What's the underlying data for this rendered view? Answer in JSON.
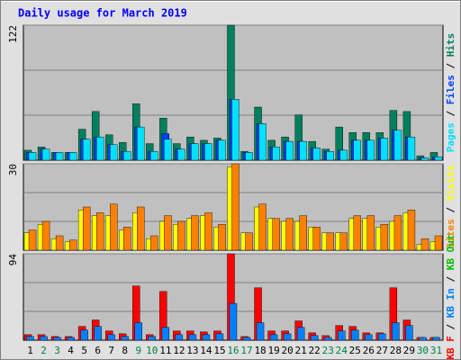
{
  "chart_data": [
    {
      "type": "bar",
      "title": "Daily usage for March 2019",
      "ylim": [
        0,
        122
      ],
      "yticks": [
        122
      ],
      "grid_divisions": 3,
      "legend_separator": " / ",
      "legend_reversed": true,
      "series": [
        {
          "name": "Hits",
          "color": "#00805c",
          "values": [
            9,
            12,
            7,
            7,
            28,
            44,
            23,
            16,
            51,
            15,
            38,
            15,
            21,
            18,
            20,
            122,
            8,
            48,
            18,
            21,
            41,
            17,
            10,
            30,
            25,
            25,
            25,
            45,
            44,
            4,
            7
          ]
        },
        {
          "name": "Files",
          "color": "#0040ff",
          "values": [
            7,
            10,
            7,
            7,
            19,
            21,
            14,
            8,
            30,
            8,
            24,
            10,
            15,
            15,
            18,
            55,
            7,
            33,
            12,
            17,
            17,
            11,
            8,
            9,
            18,
            18,
            20,
            27,
            21,
            2,
            3
          ]
        },
        {
          "name": "Pages",
          "color": "#00e0ff",
          "values": [
            7,
            10,
            7,
            7,
            19,
            21,
            14,
            8,
            30,
            8,
            19,
            10,
            15,
            15,
            18,
            55,
            7,
            33,
            12,
            17,
            17,
            11,
            8,
            9,
            18,
            18,
            20,
            27,
            21,
            2,
            3
          ]
        }
      ]
    },
    {
      "type": "bar",
      "ylim": [
        0,
        30
      ],
      "yticks": [
        30
      ],
      "grid_divisions": 3,
      "legend_separator": " / ",
      "legend_reversed": true,
      "series": [
        {
          "name": "Visits",
          "color": "#ffff00",
          "values": [
            6,
            9,
            4,
            3,
            14,
            12,
            12,
            7,
            13,
            4,
            10,
            9,
            11,
            12,
            8,
            29,
            6,
            15,
            11,
            10,
            10,
            8,
            6,
            6,
            11,
            11,
            8,
            10,
            13,
            2,
            3
          ]
        },
        {
          "name": "Sites",
          "color": "#ff8000",
          "values": [
            7,
            10,
            5,
            3.5,
            15,
            13,
            16,
            8,
            15,
            5,
            12,
            10,
            12,
            13,
            9,
            30,
            6,
            16,
            11,
            11,
            12,
            8,
            6,
            6,
            12,
            12,
            9,
            12,
            14,
            4,
            5
          ]
        }
      ]
    },
    {
      "type": "bar",
      "ylim": [
        0,
        94
      ],
      "yticks": [
        94
      ],
      "grid_divisions": 3,
      "legend_separator": " / ",
      "legend_reversed": false,
      "categories": [
        "1",
        "2",
        "3",
        "4",
        "5",
        "6",
        "7",
        "8",
        "9",
        "10",
        "11",
        "12",
        "13",
        "14",
        "15",
        "16",
        "17",
        "18",
        "19",
        "20",
        "21",
        "22",
        "23",
        "24",
        "25",
        "26",
        "27",
        "28",
        "29",
        "30",
        "31"
      ],
      "category_colors": [
        "#000000",
        "#008040",
        "#008040",
        "#000000",
        "#000000",
        "#000000",
        "#000000",
        "#000000",
        "#008040",
        "#008040",
        "#000000",
        "#000000",
        "#000000",
        "#000000",
        "#000000",
        "#008040",
        "#008040",
        "#000000",
        "#000000",
        "#000000",
        "#000000",
        "#000000",
        "#008040",
        "#008040",
        "#000000",
        "#000000",
        "#000000",
        "#000000",
        "#000000",
        "#008040",
        "#008040"
      ],
      "series": [
        {
          "name": "KB F",
          "color": "#ff0000",
          "values": [
            6,
            6,
            4,
            4,
            15,
            22,
            10,
            7,
            59,
            6,
            53,
            10,
            10,
            9,
            10,
            94,
            4,
            57,
            10,
            10,
            21,
            8,
            5,
            16,
            15,
            8,
            8,
            57,
            22,
            3,
            3
          ]
        },
        {
          "name": "KB In",
          "color": "#0080ff",
          "values": [
            4,
            4,
            3,
            3,
            11,
            15,
            6,
            4,
            19,
            4,
            14,
            6,
            6,
            6,
            7,
            40,
            3,
            19,
            6,
            7,
            14,
            5,
            3,
            10,
            11,
            6,
            7,
            19,
            16,
            3,
            3
          ]
        },
        {
          "name": "KB Out",
          "color": "#00c000",
          "values": [
            0,
            0,
            0,
            0,
            0,
            0,
            0,
            0,
            0,
            0,
            0,
            0,
            0,
            0,
            0,
            0,
            0,
            0,
            0,
            0,
            0,
            0,
            0,
            0,
            0,
            0,
            0,
            0,
            0,
            0,
            0
          ]
        }
      ]
    }
  ]
}
